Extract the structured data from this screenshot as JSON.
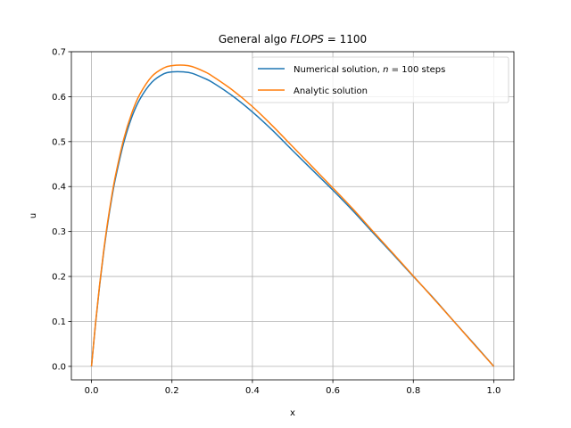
{
  "chart_data": {
    "type": "line",
    "title_prefix": "General algo ",
    "title_math": "FLOPS",
    "title_suffix": " = 1100",
    "xlabel": "x",
    "ylabel": "u",
    "xlim": [
      -0.05,
      1.05
    ],
    "ylim": [
      -0.03,
      0.7
    ],
    "xticks": [
      0.0,
      0.2,
      0.4,
      0.6,
      0.8,
      1.0
    ],
    "xtick_labels": [
      "0.0",
      "0.2",
      "0.4",
      "0.6",
      "0.8",
      "1.0"
    ],
    "yticks": [
      0.0,
      0.1,
      0.2,
      0.3,
      0.4,
      0.5,
      0.6,
      0.7
    ],
    "ytick_labels": [
      "0.0",
      "0.1",
      "0.2",
      "0.3",
      "0.4",
      "0.5",
      "0.6",
      "0.7"
    ],
    "grid": true,
    "legend_position": "top-right",
    "series": [
      {
        "name": "Numerical solution, n = 100 steps",
        "legend_before_math": "Numerical solution, ",
        "legend_math": "n",
        "legend_after_math": " = 100 steps",
        "color": "#1f77b4",
        "x": [
          0.0,
          0.01,
          0.02,
          0.03,
          0.04,
          0.05,
          0.06,
          0.08,
          0.1,
          0.12,
          0.15,
          0.18,
          0.2,
          0.23,
          0.25,
          0.28,
          0.3,
          0.35,
          0.4,
          0.45,
          0.5,
          0.55,
          0.6,
          0.65,
          0.7,
          0.75,
          0.8,
          0.85,
          0.9,
          0.95,
          1.0
        ],
        "y": [
          0.0,
          0.094,
          0.178,
          0.252,
          0.316,
          0.372,
          0.42,
          0.497,
          0.554,
          0.594,
          0.632,
          0.651,
          0.655,
          0.655,
          0.652,
          0.641,
          0.632,
          0.602,
          0.566,
          0.525,
          0.48,
          0.436,
          0.392,
          0.346,
          0.297,
          0.249,
          0.2,
          0.152,
          0.101,
          0.051,
          0.0
        ]
      },
      {
        "name": "Analytic solution",
        "legend_before_math": "Analytic solution",
        "legend_math": "",
        "legend_after_math": "",
        "color": "#ff7f0e",
        "x": [
          0.0,
          0.01,
          0.02,
          0.03,
          0.04,
          0.05,
          0.06,
          0.08,
          0.1,
          0.12,
          0.15,
          0.18,
          0.2,
          0.23,
          0.25,
          0.28,
          0.3,
          0.35,
          0.4,
          0.45,
          0.5,
          0.55,
          0.6,
          0.65,
          0.7,
          0.75,
          0.8,
          0.85,
          0.9,
          0.95,
          1.0
        ],
        "y": [
          0.0,
          0.095,
          0.18,
          0.255,
          0.32,
          0.377,
          0.426,
          0.505,
          0.563,
          0.605,
          0.645,
          0.664,
          0.669,
          0.67,
          0.667,
          0.656,
          0.646,
          0.615,
          0.578,
          0.535,
          0.489,
          0.443,
          0.397,
          0.35,
          0.3,
          0.251,
          0.201,
          0.151,
          0.101,
          0.05,
          0.0
        ]
      }
    ]
  }
}
